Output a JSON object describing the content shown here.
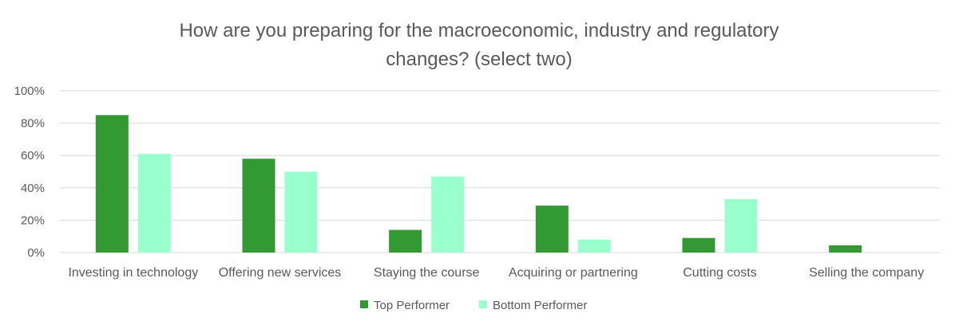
{
  "chart_data": {
    "type": "bar",
    "title": "How are you preparing for the macroeconomic, industry and regulatory changes? (select two)",
    "title_lines": [
      "How are you preparing for the macroeconomic, industry and regulatory",
      "changes? (select two)"
    ],
    "categories": [
      "Investing in technology",
      "Offering new services",
      "Staying the course",
      "Acquiring or partnering",
      "Cutting costs",
      "Selling the company"
    ],
    "series": [
      {
        "name": "Top Performer",
        "color": "#339933",
        "values": [
          85,
          58,
          14,
          29,
          9,
          4.5
        ]
      },
      {
        "name": "Bottom Performer",
        "color": "#99ffcc",
        "values": [
          61,
          50,
          47,
          8,
          33,
          0
        ]
      }
    ],
    "ylim": [
      0,
      100
    ],
    "yticks": [
      0,
      20,
      40,
      60,
      80,
      100
    ],
    "ytick_labels": [
      "0%",
      "20%",
      "40%",
      "60%",
      "80%",
      "100%"
    ],
    "grid": true,
    "legend_position": "bottom"
  }
}
